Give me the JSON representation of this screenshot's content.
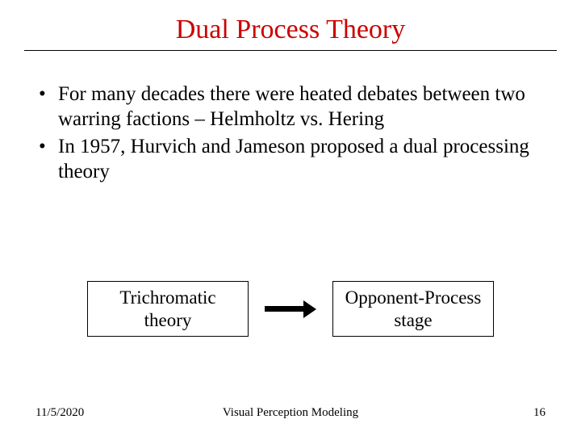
{
  "title": "Dual Process Theory",
  "title_color": "#cc0000",
  "rule_color": "#000000",
  "bullets": [
    "For many decades there were heated debates between two warring factions – Helmholtz vs. Hering",
    "In 1957, Hurvich and Jameson proposed a dual processing theory"
  ],
  "diagram": {
    "box1_line1": "Trichromatic",
    "box1_line2": "theory",
    "box2_line1": "Opponent-Process",
    "box2_line2": "stage",
    "box_border_color": "#000000",
    "arrow_color": "#000000"
  },
  "footer": {
    "date": "11/5/2020",
    "center": "Visual Perception Modeling",
    "page": "16"
  },
  "background_color": "#ffffff",
  "body_font": "Times New Roman",
  "title_fontsize": 34,
  "bullet_fontsize": 25,
  "box_fontsize": 23,
  "footer_fontsize": 15
}
